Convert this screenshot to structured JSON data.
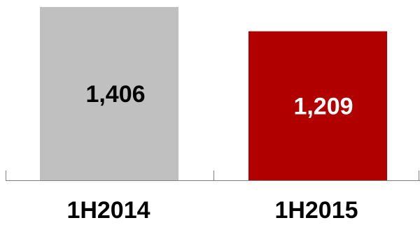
{
  "chart_data": {
    "type": "bar",
    "title": "",
    "xlabel": "",
    "ylabel": "",
    "categories": [
      "1H2014",
      "1H2015"
    ],
    "values": [
      1406,
      1209
    ],
    "value_labels": [
      "1,406",
      "1,209"
    ],
    "ylim": [
      0,
      1406
    ],
    "grid": false,
    "legend": "none",
    "colors": {
      "bars": [
        "#c0c0c0",
        "#b00000"
      ],
      "value_text": [
        "#000000",
        "#ffffff"
      ],
      "axis": "#808080"
    }
  }
}
